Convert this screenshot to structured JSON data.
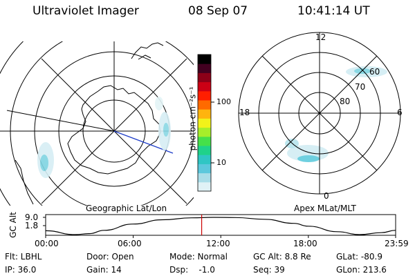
{
  "header": {
    "title": "Ultraviolet Imager",
    "date": "08 Sep 07",
    "time": "10:41:14 UT"
  },
  "left_panel": {
    "caption": "Geographic Lat/Lon"
  },
  "right_panel": {
    "caption": "Apex MLat/MLT",
    "mlt_labels": [
      "12",
      "18",
      "6",
      "0"
    ],
    "mlat_labels": [
      "60",
      "70",
      "80"
    ]
  },
  "colorbar": {
    "unit_label": "photon cm⁻²s⁻¹",
    "ticks": [
      "100",
      "10"
    ],
    "scale": "log",
    "colors": [
      "#e0f2f6",
      "#a9dde8",
      "#5cc8dc",
      "#2fc6c4",
      "#1fd28a",
      "#45e04a",
      "#a6ee2a",
      "#f2f21a",
      "#ffb40e",
      "#ff6a00",
      "#ff1e00",
      "#cc0015",
      "#8c0018",
      "#420020",
      "#000000"
    ]
  },
  "chart_data": {
    "type": "line",
    "title": "",
    "ylabel": "GC Alt",
    "ytick_labels": [
      "9.0",
      "1.8"
    ],
    "xtick_labels": [
      "00:00",
      "06:00",
      "12:00",
      "18:00",
      "23:59"
    ],
    "x_hours": [
      0,
      2,
      3,
      4,
      6,
      8,
      10,
      11.5,
      13,
      15,
      17,
      18,
      20,
      21.5,
      23,
      23.98
    ],
    "y": [
      3.4,
      1.8,
      2.2,
      3.6,
      6.2,
      8.0,
      8.8,
      9.0,
      8.9,
      8.2,
      6.5,
      5.3,
      3.0,
      1.8,
      2.6,
      3.6
    ],
    "ylim": [
      1.8,
      9.0
    ],
    "xlim": [
      0,
      23.98
    ],
    "marker_time": "10:41:14",
    "marker_hours": 10.69,
    "marker_color": "#cc0000"
  },
  "footer": {
    "row1": [
      "Flt: LBHL",
      "Door: Open",
      "Mode: Normal",
      "GC Alt: 8.8 Re",
      "GLat: -80.9"
    ],
    "row2": [
      "IP: 36.0",
      "Gain: 14",
      "Dsp:    -1.0",
      "Seq: 39",
      "GLon: 213.6"
    ]
  }
}
